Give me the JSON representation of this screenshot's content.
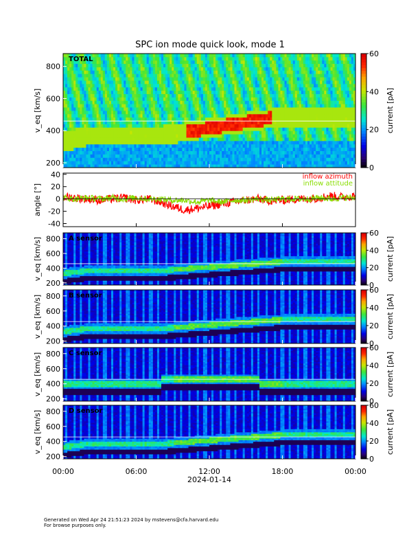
{
  "title": "SPC ion mode quick look, mode 1",
  "footer": {
    "generated": "Generated on Wed Apr 24 21:51:23 2024 by mstevens@cfa.harvard.edu",
    "note": "For browse purposes only."
  },
  "colors": {
    "background": "#ffffff",
    "axis": "#000000",
    "azimuth": "#ff0000",
    "attitude": "#88dd00"
  },
  "chart_data": [
    {
      "type": "heatmap",
      "panel_label": "TOTAL",
      "ylabel": "v_eq [km/s]",
      "ylim": [
        170,
        880
      ],
      "yticks": [
        200,
        400,
        600,
        800
      ],
      "colorbar": {
        "label": "current [pA]",
        "range": [
          0,
          60
        ],
        "ticks": [
          0,
          20,
          40,
          60
        ]
      },
      "xlim": [
        0,
        24
      ]
    },
    {
      "type": "line",
      "ylabel": "angle [°]",
      "ylim": [
        -45,
        42
      ],
      "yticks": [
        -40,
        -20,
        0,
        20,
        40
      ],
      "xlim": [
        0,
        24
      ],
      "series": [
        {
          "name": "inflow azimuth",
          "color": "#ff0000",
          "x": [
            0,
            1,
            2,
            3,
            4,
            5,
            6,
            7,
            8,
            9,
            10,
            11,
            12,
            13,
            14,
            15,
            16,
            17,
            18,
            19,
            20,
            21,
            22,
            23,
            24
          ],
          "values": [
            3,
            2,
            0,
            -2,
            0,
            2,
            -2,
            0,
            -5,
            -12,
            -18,
            -15,
            -12,
            -8,
            -5,
            -2,
            0,
            -3,
            -2,
            0,
            0,
            2,
            5,
            3,
            5
          ]
        },
        {
          "name": "inflow attitude",
          "color": "#88dd00",
          "x": [
            0,
            1,
            2,
            3,
            4,
            5,
            6,
            7,
            8,
            9,
            10,
            11,
            12,
            13,
            14,
            15,
            16,
            17,
            18,
            19,
            20,
            21,
            22,
            23,
            24
          ],
          "values": [
            2,
            0,
            2,
            0,
            2,
            0,
            2,
            0,
            0,
            -2,
            -2,
            -5,
            -2,
            -5,
            -2,
            -2,
            0,
            -2,
            0,
            0,
            0,
            2,
            0,
            2,
            2
          ]
        }
      ],
      "zero_line": true
    },
    {
      "type": "heatmap",
      "panel_label": "A sensor",
      "ylabel": "v_eq [km/s]",
      "ylim": [
        170,
        880
      ],
      "yticks": [
        200,
        400,
        600,
        800
      ],
      "colorbar": {
        "label": "current [pA]",
        "range": [
          0,
          60
        ],
        "ticks": [
          0,
          20,
          40,
          60
        ]
      },
      "xlim": [
        0,
        24
      ]
    },
    {
      "type": "heatmap",
      "panel_label": "B sensor",
      "ylabel": "v_eq [km/s]",
      "ylim": [
        170,
        880
      ],
      "yticks": [
        200,
        400,
        600,
        800
      ],
      "colorbar": {
        "label": "current [pA]",
        "range": [
          0,
          60
        ],
        "ticks": [
          0,
          20,
          40,
          60
        ]
      },
      "xlim": [
        0,
        24
      ]
    },
    {
      "type": "heatmap",
      "panel_label": "C sensor",
      "ylabel": "v_eq [km/s]",
      "ylim": [
        170,
        880
      ],
      "yticks": [
        200,
        400,
        600,
        800
      ],
      "colorbar": {
        "label": "current [pA]",
        "range": [
          0,
          60
        ],
        "ticks": [
          0,
          20,
          40,
          60
        ]
      },
      "xlim": [
        0,
        24
      ]
    },
    {
      "type": "heatmap",
      "panel_label": "D sensor",
      "ylabel": "v_eq [km/s]",
      "ylim": [
        170,
        880
      ],
      "yticks": [
        200,
        400,
        600,
        800
      ],
      "colorbar": {
        "label": "current [pA]",
        "range": [
          0,
          60
        ],
        "ticks": [
          0,
          20,
          40,
          60
        ]
      },
      "xlim": [
        0,
        24
      ]
    }
  ],
  "xaxis": {
    "ticks": [
      {
        "t": 0,
        "label": "00:00"
      },
      {
        "t": 6,
        "label": "06:00"
      },
      {
        "t": 12,
        "label": "12:00"
      },
      {
        "t": 18,
        "label": "18:00"
      },
      {
        "t": 24,
        "label": "00:00"
      }
    ],
    "date": "2024-01-14"
  }
}
